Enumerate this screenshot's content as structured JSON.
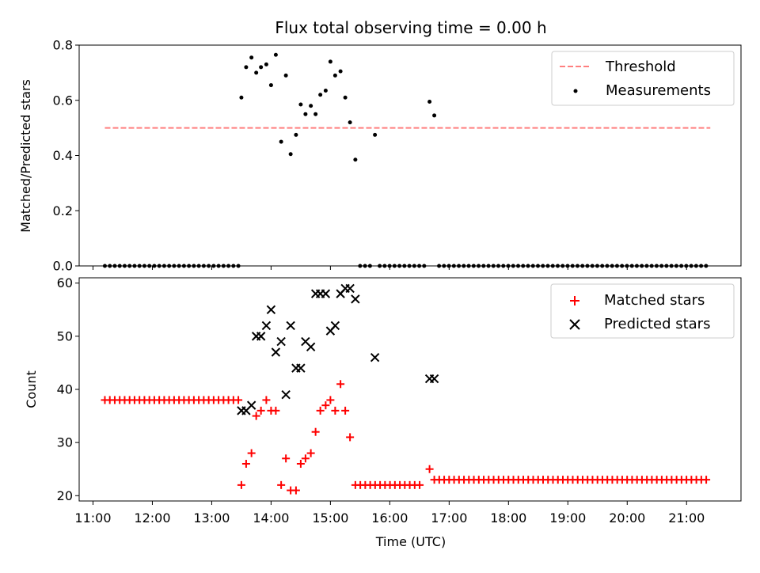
{
  "title": "Flux total observing time = 0.00 h",
  "chart_data": [
    {
      "type": "scatter",
      "ylabel": "Matched/Predicted stars",
      "xlabel": "",
      "xlim": [
        10.767,
        21.917
      ],
      "ylim": [
        0,
        0.8
      ],
      "yticks": [
        0.0,
        0.2,
        0.4,
        0.6,
        0.8
      ],
      "ytick_labels": [
        "0.0",
        "0.2",
        "0.4",
        "0.6",
        "0.8"
      ],
      "legend_position": "top-right",
      "threshold": {
        "name": "Threshold",
        "x": [
          11.2,
          21.4
        ],
        "y": 0.5,
        "color": "#ff7f7f"
      },
      "measurements": {
        "name": "Measurements",
        "color": "#000000",
        "x": [
          13.5,
          13.58,
          13.67,
          13.75,
          13.83,
          13.92,
          14.0,
          14.08,
          14.17,
          14.25,
          14.33,
          14.42,
          14.5,
          14.58,
          14.67,
          14.75,
          14.83,
          14.92,
          15.0,
          15.08,
          15.17,
          15.25,
          15.33,
          15.42,
          15.75,
          16.67,
          16.75
        ],
        "y": [
          0.61,
          0.72,
          0.755,
          0.7,
          0.72,
          0.73,
          0.655,
          0.765,
          0.45,
          0.69,
          0.405,
          0.475,
          0.585,
          0.55,
          0.58,
          0.55,
          0.62,
          0.635,
          0.74,
          0.69,
          0.705,
          0.61,
          0.52,
          0.385,
          0.475,
          0.595,
          0.545
        ]
      },
      "zero_segments": [
        [
          11.2,
          13.45,
          0.0833
        ],
        [
          15.5,
          15.67,
          0.0833
        ],
        [
          15.83,
          16.58,
          0.0833
        ],
        [
          16.83,
          21.4,
          0.0833
        ]
      ]
    },
    {
      "type": "scatter",
      "ylabel": "Count",
      "xlabel": "Time (UTC)",
      "xlim": [
        10.767,
        21.917
      ],
      "ylim": [
        19,
        61
      ],
      "yticks": [
        20,
        30,
        40,
        50,
        60
      ],
      "ytick_labels": [
        "20",
        "30",
        "40",
        "50",
        "60"
      ],
      "xticks": [
        11,
        12,
        13,
        14,
        15,
        16,
        17,
        18,
        19,
        20,
        21
      ],
      "xtick_labels": [
        "11:00",
        "12:00",
        "13:00",
        "14:00",
        "15:00",
        "16:00",
        "17:00",
        "18:00",
        "19:00",
        "20:00",
        "21:00"
      ],
      "legend_position": "top-right",
      "matched": {
        "name": "Matched stars",
        "color": "#ff0000",
        "x": [
          13.5,
          13.58,
          13.67,
          13.75,
          13.83,
          13.92,
          14.0,
          14.08,
          14.17,
          14.25,
          14.33,
          14.42,
          14.5,
          14.58,
          14.67,
          14.75,
          14.83,
          14.92,
          15.0,
          15.08,
          15.17,
          15.25,
          15.33,
          16.67
        ],
        "y": [
          22,
          26,
          28,
          35,
          36,
          38,
          36,
          36,
          22,
          27,
          21,
          21,
          26,
          27,
          28,
          32,
          36,
          37,
          38,
          36,
          41,
          36,
          31,
          25
        ],
        "flat_segments": [
          [
            11.2,
            13.45,
            0.0833,
            38
          ],
          [
            15.42,
            16.58,
            0.0833,
            22
          ],
          [
            16.75,
            21.4,
            0.0833,
            23
          ]
        ]
      },
      "predicted": {
        "name": "Predicted stars",
        "color": "#000000",
        "x": [
          13.5,
          13.58,
          13.67,
          13.75,
          13.83,
          13.92,
          14.0,
          14.08,
          14.17,
          14.25,
          14.33,
          14.42,
          14.5,
          14.58,
          14.67,
          14.75,
          14.83,
          14.92,
          15.0,
          15.08,
          15.17,
          15.25,
          15.33,
          15.42,
          15.75,
          16.67,
          16.75
        ],
        "y": [
          36,
          36,
          37,
          50,
          50,
          52,
          55,
          47,
          49,
          39,
          52,
          44,
          44,
          49,
          48,
          58,
          58,
          58,
          51,
          52,
          58,
          59,
          59,
          57,
          46,
          42,
          42
        ]
      }
    }
  ]
}
